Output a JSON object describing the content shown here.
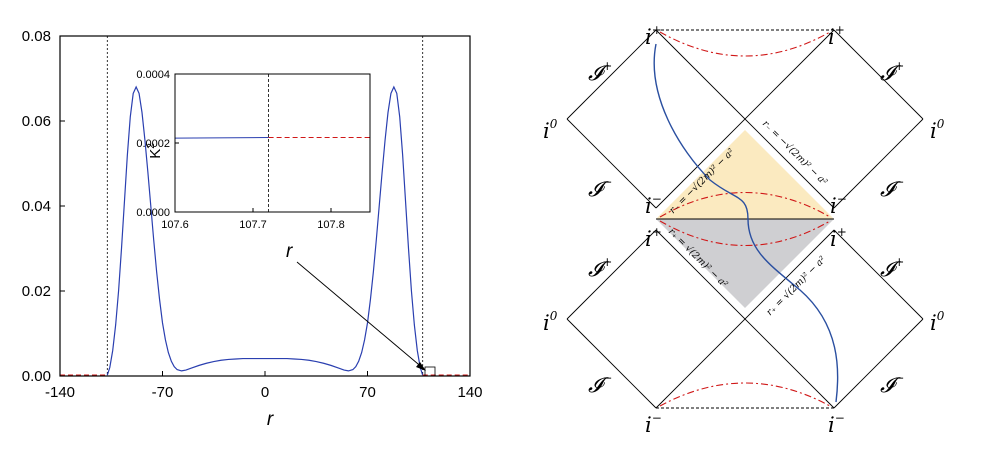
{
  "chart_data": [
    {
      "type": "line",
      "xlabel": "r",
      "ylabel": "",
      "xlim": [
        -140,
        140
      ],
      "ylim": [
        0,
        0.08
      ],
      "xticks": [
        "-140",
        "-70",
        "0",
        "70",
        "140"
      ],
      "yticks": [
        "0.00",
        "0.02",
        "0.04",
        "0.06",
        "0.08"
      ],
      "vertical_lines_x": [
        -107.7,
        107.7
      ],
      "series": [
        {
          "color": "#2a3fb0",
          "style": "solid",
          "x": [
            -107.7,
            -106,
            -104,
            -102,
            -100,
            -98,
            -96,
            -94,
            -92,
            -90,
            -88,
            -86,
            -84,
            -82,
            -80,
            -78,
            -76,
            -74,
            -72,
            -70,
            -68,
            -66,
            -64,
            -62,
            -60,
            -57,
            -54,
            -50,
            -45,
            -40,
            -35,
            -30,
            -25,
            -20,
            -15,
            -10,
            -5,
            0,
            5,
            10,
            15,
            20,
            25,
            30,
            35,
            40,
            45,
            50,
            54,
            57,
            60,
            62,
            64,
            66,
            68,
            70,
            72,
            74,
            76,
            78,
            80,
            82,
            84,
            86,
            88,
            90,
            92,
            94,
            96,
            98,
            100,
            102,
            104,
            106,
            107.7
          ],
          "y": [
            0.0002,
            0.002,
            0.006,
            0.012,
            0.02,
            0.03,
            0.041,
            0.052,
            0.061,
            0.0665,
            0.068,
            0.0665,
            0.062,
            0.0555,
            0.048,
            0.04,
            0.032,
            0.0245,
            0.018,
            0.0125,
            0.0085,
            0.0055,
            0.0035,
            0.0022,
            0.0015,
            0.0012,
            0.0014,
            0.0019,
            0.0025,
            0.003,
            0.0034,
            0.0037,
            0.0039,
            0.004,
            0.0041,
            0.0041,
            0.0041,
            0.0041,
            0.0041,
            0.0041,
            0.0041,
            0.004,
            0.0039,
            0.0037,
            0.0034,
            0.003,
            0.0025,
            0.0019,
            0.0014,
            0.0012,
            0.0015,
            0.0022,
            0.0035,
            0.0055,
            0.0085,
            0.0125,
            0.018,
            0.0245,
            0.032,
            0.04,
            0.048,
            0.0555,
            0.062,
            0.0665,
            0.068,
            0.0665,
            0.061,
            0.052,
            0.041,
            0.03,
            0.02,
            0.012,
            0.006,
            0.002,
            0.0002
          ]
        },
        {
          "color": "#d01818",
          "style": "dashed",
          "x": [
            -140,
            -107.7
          ],
          "y": [
            0.0002,
            0.0002
          ]
        },
        {
          "color": "#d01818",
          "style": "dashed",
          "x": [
            107.7,
            140
          ],
          "y": [
            0.0002,
            0.0002
          ]
        }
      ],
      "annotation": {
        "text": "r",
        "points_to_x": 107.7
      }
    },
    {
      "type": "line",
      "inset": true,
      "xlabel": "",
      "ylabel": "K",
      "ylabel_sup": "2",
      "xlim": [
        107.6,
        107.85
      ],
      "ylim": [
        0,
        0.0004
      ],
      "xticks": [
        "107.6",
        "107.7",
        "107.8"
      ],
      "yticks": [
        "0.0000",
        "0.0002",
        "0.0004"
      ],
      "vertical_lines_x": [
        107.72
      ],
      "series": [
        {
          "color": "#2a3fb0",
          "style": "solid",
          "x": [
            107.6,
            107.72
          ],
          "y": [
            0.000214,
            0.000216
          ]
        },
        {
          "color": "#d01818",
          "style": "dashed",
          "x": [
            107.72,
            107.85
          ],
          "y": [
            0.000216,
            0.000216
          ]
        }
      ]
    }
  ],
  "penrose": {
    "labels": {
      "i_plus": "i",
      "i_plus_sup": "+",
      "i_minus": "i",
      "i_minus_sup": "−",
      "i_zero": "i",
      "i_zero_sup": "0",
      "scri_plus": "𝓘",
      "scri_plus_sup": "+",
      "scri_minus": "𝓘",
      "scri_minus_sup": "−"
    },
    "horizon_minus_left": "r₋ = −√(2m)² − a²",
    "horizon_minus_right": "r₋ = −√(2m)² − a²",
    "horizon_plus_left": "r₊ = √(2m)² − a²",
    "horizon_plus_right": "r₊ = √(2m)² − a²",
    "colors": {
      "upper_region": "#fbeac0",
      "lower_region": "#cfcfd2",
      "trajectory": "#2a4fa0",
      "singularity": "#d01818"
    }
  }
}
